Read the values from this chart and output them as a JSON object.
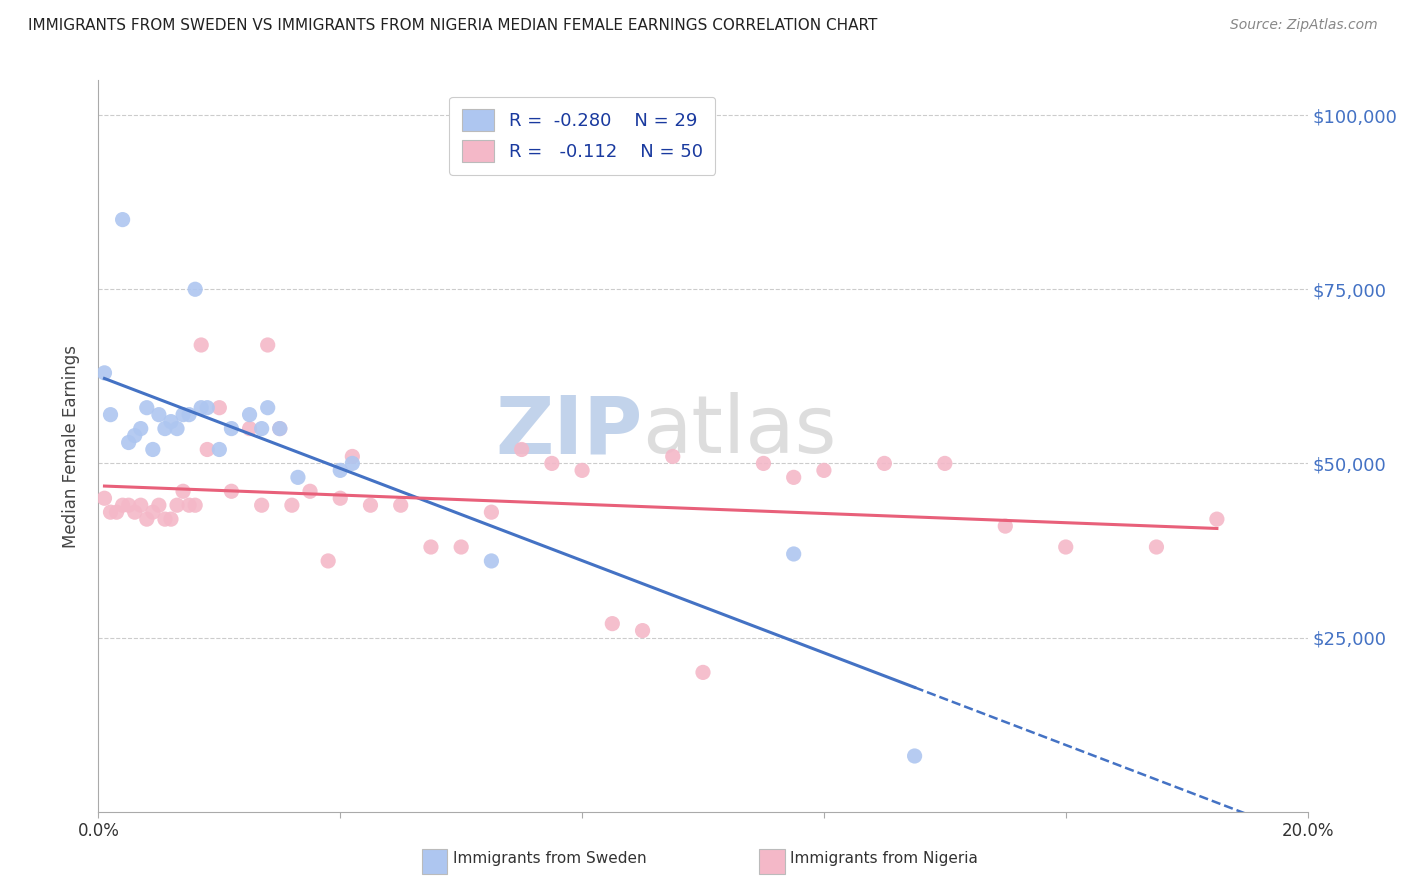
{
  "title": "IMMIGRANTS FROM SWEDEN VS IMMIGRANTS FROM NIGERIA MEDIAN FEMALE EARNINGS CORRELATION CHART",
  "source": "Source: ZipAtlas.com",
  "ylabel": "Median Female Earnings",
  "yticks": [
    0,
    25000,
    50000,
    75000,
    100000
  ],
  "ytick_labels": [
    "",
    "$25,000",
    "$50,000",
    "$75,000",
    "$100,000"
  ],
  "legend_label1": "Immigrants from Sweden",
  "legend_label2": "Immigrants from Nigeria",
  "sweden_color": "#aec6f0",
  "nigeria_color": "#f4b8c8",
  "sweden_line_color": "#4472c4",
  "nigeria_line_color": "#e8607a",
  "right_tick_color": "#4472c4",
  "watermark_color": "#ccd9f0",
  "grid_color": "#cccccc",
  "sweden_x": [
    0.001,
    0.002,
    0.004,
    0.005,
    0.006,
    0.007,
    0.008,
    0.009,
    0.01,
    0.011,
    0.012,
    0.013,
    0.014,
    0.015,
    0.016,
    0.017,
    0.018,
    0.02,
    0.022,
    0.025,
    0.027,
    0.028,
    0.03,
    0.033,
    0.04,
    0.042,
    0.065,
    0.115,
    0.135
  ],
  "sweden_y": [
    63000,
    57000,
    85000,
    53000,
    54000,
    55000,
    58000,
    52000,
    57000,
    55000,
    56000,
    55000,
    57000,
    57000,
    75000,
    58000,
    58000,
    52000,
    55000,
    57000,
    55000,
    58000,
    55000,
    48000,
    49000,
    50000,
    36000,
    37000,
    8000
  ],
  "nigeria_x": [
    0.001,
    0.002,
    0.003,
    0.004,
    0.005,
    0.006,
    0.007,
    0.008,
    0.009,
    0.01,
    0.011,
    0.012,
    0.013,
    0.014,
    0.015,
    0.016,
    0.017,
    0.018,
    0.02,
    0.022,
    0.025,
    0.027,
    0.028,
    0.03,
    0.032,
    0.035,
    0.038,
    0.04,
    0.042,
    0.045,
    0.05,
    0.055,
    0.06,
    0.065,
    0.07,
    0.075,
    0.08,
    0.085,
    0.09,
    0.095,
    0.1,
    0.11,
    0.115,
    0.12,
    0.13,
    0.14,
    0.15,
    0.16,
    0.175,
    0.185
  ],
  "nigeria_y": [
    45000,
    43000,
    43000,
    44000,
    44000,
    43000,
    44000,
    42000,
    43000,
    44000,
    42000,
    42000,
    44000,
    46000,
    44000,
    44000,
    67000,
    52000,
    58000,
    46000,
    55000,
    44000,
    67000,
    55000,
    44000,
    46000,
    36000,
    45000,
    51000,
    44000,
    44000,
    38000,
    38000,
    43000,
    52000,
    50000,
    49000,
    27000,
    26000,
    51000,
    20000,
    50000,
    48000,
    49000,
    50000,
    50000,
    41000,
    38000,
    38000,
    42000
  ],
  "xlim": [
    0.0,
    0.2
  ],
  "ylim": [
    0,
    105000
  ],
  "figsize": [
    14.06,
    8.92
  ],
  "dpi": 100
}
